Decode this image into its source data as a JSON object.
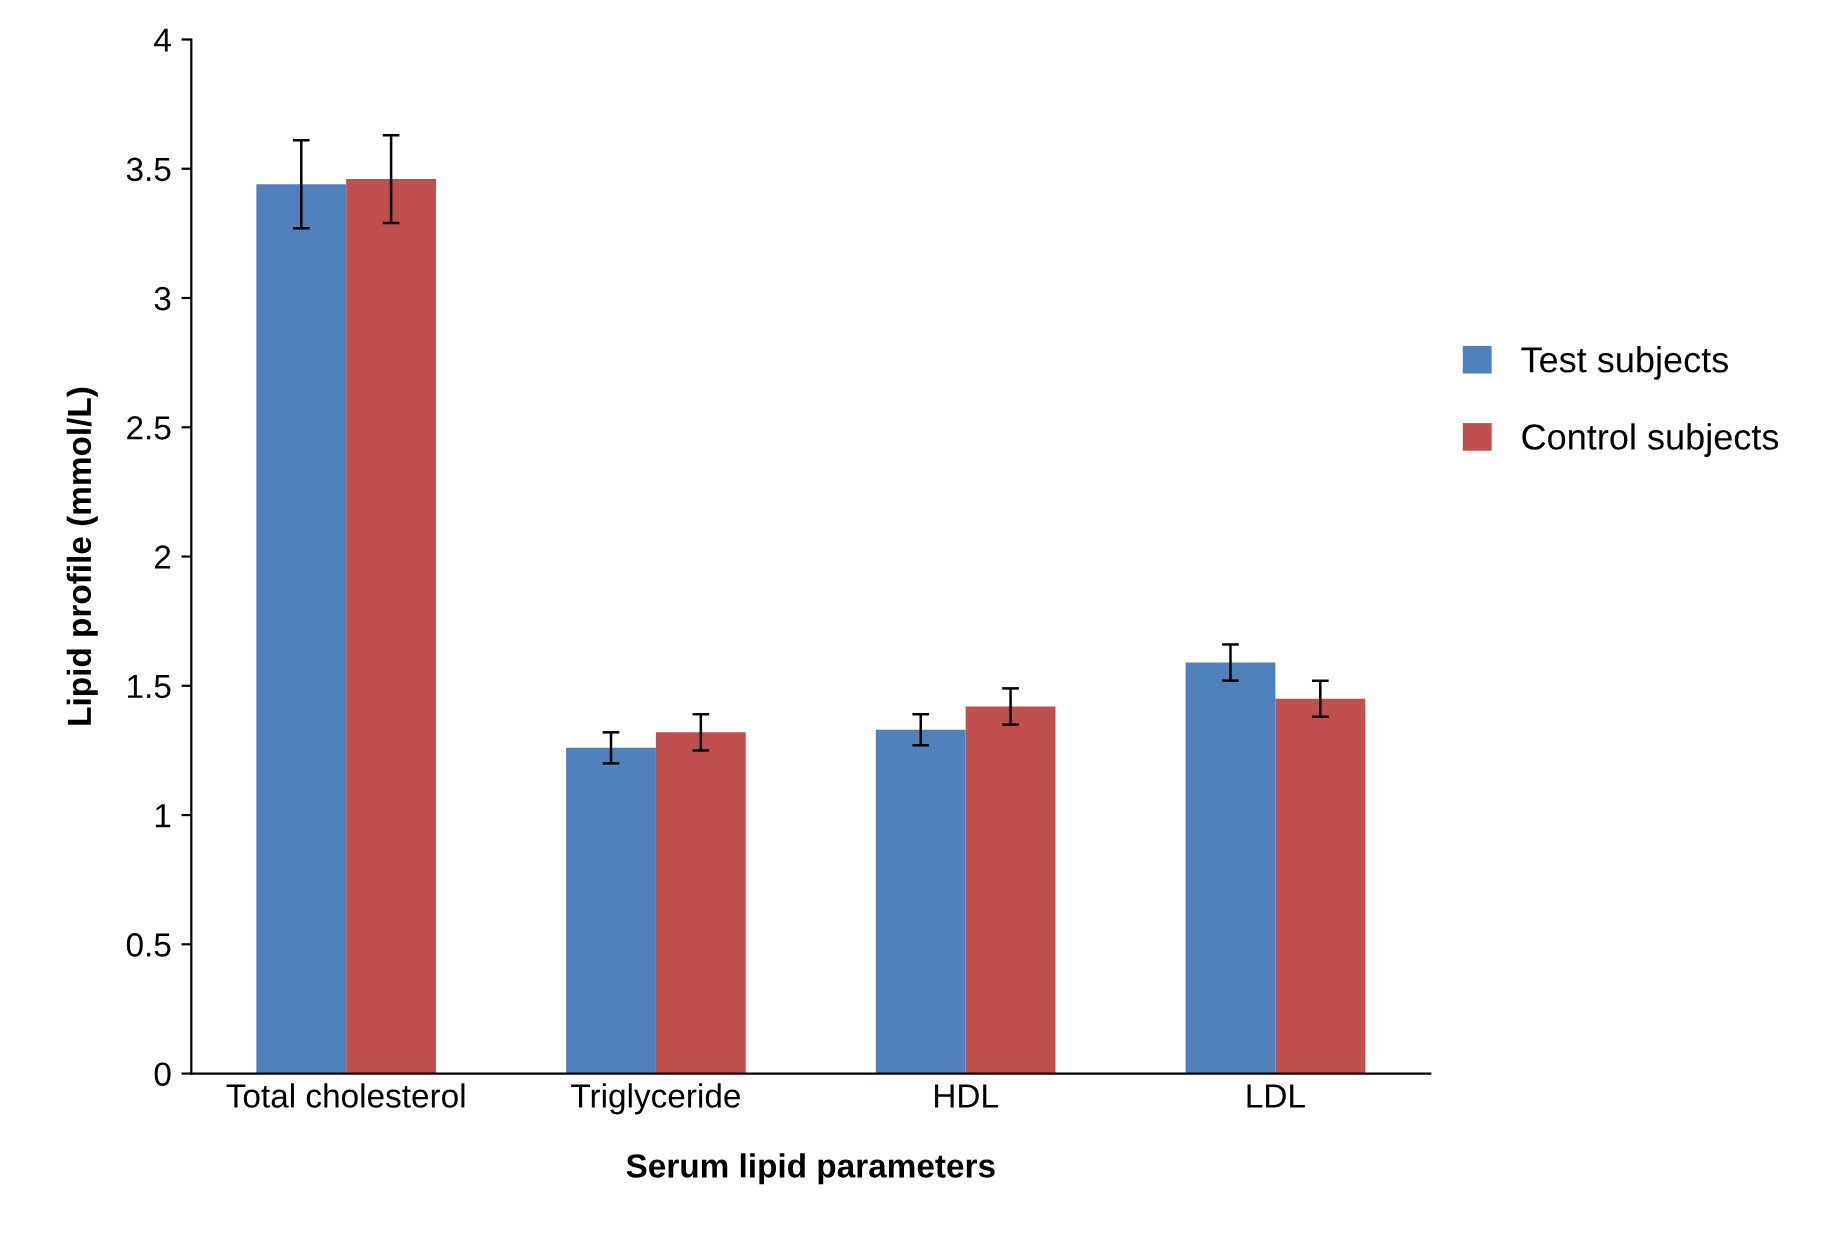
{
  "chart_data": {
    "type": "bar",
    "xlabel": "Serum lipid parameters",
    "ylabel": "Lipid profile (mmol/L)",
    "categories": [
      "Total cholesterol",
      "Triglyceride",
      "HDL",
      "LDL"
    ],
    "series": [
      {
        "name": "Test subjects",
        "color": "#4f81bd",
        "values": [
          3.44,
          1.26,
          1.33,
          1.59
        ],
        "errors": [
          0.17,
          0.06,
          0.06,
          0.07
        ]
      },
      {
        "name": "Control subjects",
        "color": "#c0504d",
        "values": [
          3.46,
          1.32,
          1.42,
          1.45
        ],
        "errors": [
          0.17,
          0.07,
          0.07,
          0.07
        ]
      }
    ],
    "ylim": [
      0,
      4
    ],
    "yticks": [
      0,
      0.5,
      1,
      1.5,
      2,
      2.5,
      3,
      3.5,
      4
    ],
    "grid": false,
    "legend": "right"
  }
}
